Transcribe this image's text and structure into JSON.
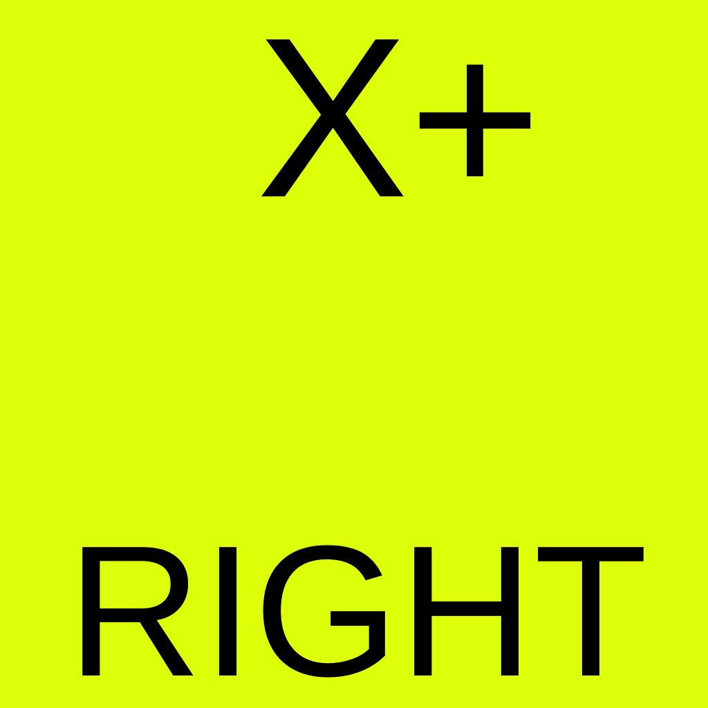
{
  "face": {
    "axis_label": "X+",
    "direction_label": "RIGHT",
    "background_color": "#DEFF0A",
    "text_color": "#000000"
  }
}
